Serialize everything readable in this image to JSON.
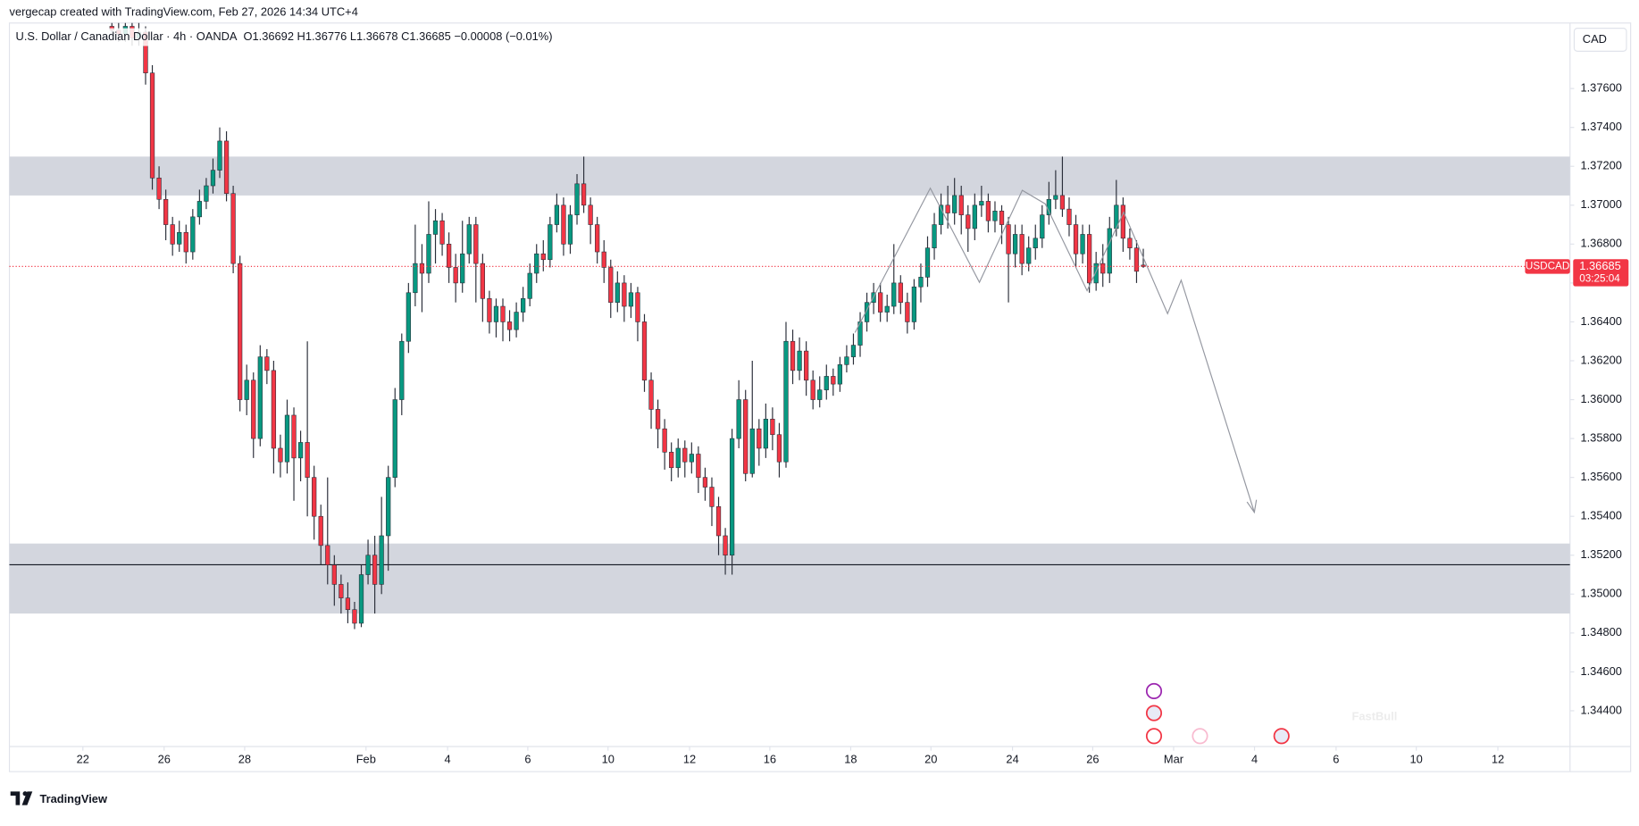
{
  "header": {
    "created_by": "vergecap created with TradingView.com, Feb 27, 2026 14:34 UTC+4",
    "logo": "TradingView"
  },
  "chart_data": {
    "type": "candlestick",
    "title": "U.S. Dollar / Canadian Dollar · 4h · OANDA",
    "subtitle": "O1.36692 H1.36776 L1.36678 C1.36685 −0.00008 (−0.01%)",
    "currency": "CAD",
    "countdown": "03:25:04",
    "watermark": "FastBull",
    "grid": false,
    "series": [
      {
        "name": "USDCAD",
        "up_color": "#089981",
        "down_color": "#f23645",
        "open": [
          1.3792,
          1.379,
          1.3788,
          1.3792,
          1.3786,
          1.3789,
          1.3768,
          1.3714,
          1.3703,
          1.369,
          1.368,
          1.3686,
          1.3676,
          1.3694,
          1.3702,
          1.371,
          1.3718,
          1.3733,
          1.3706,
          1.367,
          1.36,
          1.361,
          1.358,
          1.3622,
          1.3615,
          1.3575,
          1.3568,
          1.3592,
          1.357,
          1.3578,
          1.356,
          1.354,
          1.3525,
          1.3515,
          1.3505,
          1.3498,
          1.3492,
          1.3485,
          1.351,
          1.352,
          1.3505,
          1.353,
          1.356,
          1.36,
          1.363,
          1.3655,
          1.367,
          1.3665,
          1.3685,
          1.3692,
          1.368,
          1.3668,
          1.366,
          1.3675,
          1.369,
          1.367,
          1.3652,
          1.364,
          1.3648,
          1.364,
          1.3636,
          1.3645,
          1.3652,
          1.3665,
          1.3675,
          1.3672,
          1.369,
          1.37,
          1.368,
          1.3695,
          1.3711,
          1.37,
          1.369,
          1.3676,
          1.3668,
          1.365,
          1.366,
          1.3648,
          1.3655,
          1.364,
          1.361,
          1.3595,
          1.3585,
          1.3573,
          1.3565,
          1.3575,
          1.3568,
          1.3572,
          1.356,
          1.3555,
          1.3545,
          1.353,
          1.352,
          1.358,
          1.36,
          1.3562,
          1.3585,
          1.3575,
          1.359,
          1.3582,
          1.3568,
          1.363,
          1.3615,
          1.3625,
          1.361,
          1.36,
          1.3605,
          1.3612,
          1.3608,
          1.3618,
          1.3622,
          1.3628,
          1.364,
          1.365,
          1.3655,
          1.3645,
          1.3648,
          1.366,
          1.365,
          1.364,
          1.3658,
          1.3663,
          1.3678,
          1.369,
          1.37,
          1.3696,
          1.3705,
          1.3695,
          1.3688,
          1.37,
          1.3702,
          1.3692,
          1.3697,
          1.369,
          1.3675,
          1.3685,
          1.367,
          1.3678,
          1.3683,
          1.3695,
          1.3703,
          1.3705,
          1.3698,
          1.369,
          1.3675,
          1.3685,
          1.366,
          1.367,
          1.3665,
          1.3688,
          1.37,
          1.3683,
          1.3678,
          1.36692
        ],
        "high": [
          1.3796,
          1.3794,
          1.3797,
          1.3796,
          1.3794,
          1.3792,
          1.3772,
          1.372,
          1.3708,
          1.3694,
          1.3692,
          1.369,
          1.3698,
          1.3708,
          1.3714,
          1.3724,
          1.374,
          1.3738,
          1.371,
          1.3674,
          1.3618,
          1.3614,
          1.3628,
          1.3626,
          1.362,
          1.3582,
          1.36,
          1.3596,
          1.3584,
          1.363,
          1.3566,
          1.3546,
          1.356,
          1.352,
          1.351,
          1.3506,
          1.3496,
          1.3515,
          1.3528,
          1.353,
          1.355,
          1.3566,
          1.3606,
          1.3634,
          1.366,
          1.369,
          1.368,
          1.3702,
          1.3698,
          1.3696,
          1.3686,
          1.3675,
          1.3692,
          1.3694,
          1.3694,
          1.3675,
          1.3656,
          1.3652,
          1.3652,
          1.3646,
          1.365,
          1.3658,
          1.367,
          1.368,
          1.3682,
          1.3694,
          1.3706,
          1.3704,
          1.37,
          1.3716,
          1.3725,
          1.3704,
          1.3694,
          1.3682,
          1.3672,
          1.3666,
          1.3664,
          1.366,
          1.3658,
          1.3644,
          1.3614,
          1.36,
          1.359,
          1.3578,
          1.358,
          1.3579,
          1.3578,
          1.3576,
          1.3565,
          1.356,
          1.355,
          1.3534,
          1.3585,
          1.361,
          1.3605,
          1.362,
          1.359,
          1.3598,
          1.3596,
          1.3588,
          1.364,
          1.3636,
          1.3632,
          1.363,
          1.3615,
          1.3612,
          1.3618,
          1.3616,
          1.3622,
          1.3628,
          1.3634,
          1.3645,
          1.3655,
          1.366,
          1.366,
          1.3654,
          1.368,
          1.3664,
          1.3655,
          1.3662,
          1.367,
          1.3684,
          1.3696,
          1.3706,
          1.371,
          1.3714,
          1.371,
          1.37,
          1.3706,
          1.371,
          1.3706,
          1.3702,
          1.37,
          1.3694,
          1.369,
          1.369,
          1.3684,
          1.369,
          1.37,
          1.3712,
          1.3718,
          1.3725,
          1.3704,
          1.3695,
          1.369,
          1.369,
          1.3676,
          1.368,
          1.3694,
          1.3713,
          1.3704,
          1.3688,
          1.3682,
          1.36776
        ],
        "low": [
          1.3786,
          1.3784,
          1.3784,
          1.3782,
          1.3782,
          1.3762,
          1.3708,
          1.3698,
          1.3682,
          1.3674,
          1.3676,
          1.367,
          1.3672,
          1.369,
          1.3698,
          1.3706,
          1.3714,
          1.3702,
          1.3665,
          1.3594,
          1.3592,
          1.357,
          1.3576,
          1.3608,
          1.3562,
          1.356,
          1.3562,
          1.3548,
          1.3558,
          1.354,
          1.3528,
          1.3515,
          1.3505,
          1.3494,
          1.349,
          1.3485,
          1.3482,
          1.3483,
          1.3505,
          1.349,
          1.35,
          1.3512,
          1.3555,
          1.3592,
          1.3624,
          1.3648,
          1.3645,
          1.366,
          1.367,
          1.3674,
          1.366,
          1.365,
          1.3655,
          1.367,
          1.365,
          1.364,
          1.3634,
          1.3632,
          1.363,
          1.363,
          1.3632,
          1.364,
          1.3648,
          1.366,
          1.3666,
          1.3668,
          1.3686,
          1.3674,
          1.3675,
          1.369,
          1.3696,
          1.368,
          1.367,
          1.366,
          1.3642,
          1.3645,
          1.364,
          1.3642,
          1.363,
          1.3604,
          1.3585,
          1.3575,
          1.3564,
          1.3558,
          1.356,
          1.356,
          1.3562,
          1.3552,
          1.3548,
          1.3535,
          1.352,
          1.351,
          1.351,
          1.3575,
          1.3558,
          1.356,
          1.3566,
          1.357,
          1.3574,
          1.356,
          1.3565,
          1.3608,
          1.361,
          1.3602,
          1.3595,
          1.3596,
          1.36,
          1.3602,
          1.3604,
          1.3614,
          1.3618,
          1.3622,
          1.3635,
          1.3644,
          1.364,
          1.364,
          1.3644,
          1.3644,
          1.3634,
          1.3636,
          1.365,
          1.3658,
          1.3672,
          1.3685,
          1.3688,
          1.369,
          1.3685,
          1.3676,
          1.3682,
          1.3694,
          1.3686,
          1.3686,
          1.368,
          1.365,
          1.3668,
          1.3664,
          1.3666,
          1.3672,
          1.3678,
          1.369,
          1.3698,
          1.3694,
          1.3684,
          1.3668,
          1.367,
          1.3655,
          1.3656,
          1.3658,
          1.366,
          1.3684,
          1.3676,
          1.3672,
          1.366,
          1.36678
        ],
        "close": [
          1.379,
          1.3788,
          1.3792,
          1.3786,
          1.3789,
          1.3768,
          1.3714,
          1.3703,
          1.369,
          1.368,
          1.3686,
          1.3676,
          1.3694,
          1.3702,
          1.371,
          1.3718,
          1.3733,
          1.3706,
          1.367,
          1.36,
          1.361,
          1.358,
          1.3622,
          1.3615,
          1.3575,
          1.3568,
          1.3592,
          1.357,
          1.3578,
          1.356,
          1.354,
          1.3525,
          1.3515,
          1.3505,
          1.3498,
          1.3492,
          1.3485,
          1.351,
          1.352,
          1.3505,
          1.353,
          1.356,
          1.36,
          1.363,
          1.3655,
          1.367,
          1.3665,
          1.3685,
          1.3692,
          1.368,
          1.3668,
          1.366,
          1.3675,
          1.369,
          1.367,
          1.3652,
          1.364,
          1.3648,
          1.364,
          1.3636,
          1.3645,
          1.3652,
          1.3665,
          1.3675,
          1.3672,
          1.369,
          1.37,
          1.368,
          1.3695,
          1.3711,
          1.37,
          1.369,
          1.3676,
          1.3668,
          1.365,
          1.366,
          1.3648,
          1.3655,
          1.364,
          1.361,
          1.3595,
          1.3585,
          1.3573,
          1.3565,
          1.3575,
          1.3568,
          1.3572,
          1.356,
          1.3555,
          1.3545,
          1.353,
          1.352,
          1.358,
          1.36,
          1.3562,
          1.3585,
          1.3575,
          1.359,
          1.3582,
          1.3568,
          1.363,
          1.3615,
          1.3625,
          1.361,
          1.36,
          1.3605,
          1.3612,
          1.3608,
          1.3618,
          1.3622,
          1.3628,
          1.364,
          1.365,
          1.3655,
          1.3645,
          1.3648,
          1.366,
          1.365,
          1.364,
          1.3658,
          1.3663,
          1.3678,
          1.369,
          1.37,
          1.3696,
          1.3705,
          1.3695,
          1.3688,
          1.37,
          1.3702,
          1.3692,
          1.3697,
          1.369,
          1.3675,
          1.3685,
          1.367,
          1.3678,
          1.3683,
          1.3695,
          1.3703,
          1.3705,
          1.3698,
          1.369,
          1.3675,
          1.3685,
          1.366,
          1.367,
          1.3665,
          1.3688,
          1.37,
          1.3683,
          1.3678,
          1.3666,
          1.36685
        ]
      }
    ],
    "xlim": [
      -15.2,
      216.3
    ],
    "xticks": [
      {
        "value": -4.3,
        "label": "22"
      },
      {
        "value": 7.75,
        "label": "26"
      },
      {
        "value": 19.7,
        "label": "28"
      },
      {
        "value": 37.7,
        "label": "Feb"
      },
      {
        "value": 49.8,
        "label": "4"
      },
      {
        "value": 61.7,
        "label": "6"
      },
      {
        "value": 73.6,
        "label": "10"
      },
      {
        "value": 85.7,
        "label": "12"
      },
      {
        "value": 97.6,
        "label": "16"
      },
      {
        "value": 109.6,
        "label": "18"
      },
      {
        "value": 121.5,
        "label": "20"
      },
      {
        "value": 133.6,
        "label": "24"
      },
      {
        "value": 145.5,
        "label": "26"
      },
      {
        "value": 157.5,
        "label": "Mar"
      },
      {
        "value": 169.5,
        "label": "4"
      },
      {
        "value": 181.6,
        "label": "6"
      },
      {
        "value": 193.5,
        "label": "10"
      },
      {
        "value": 205.6,
        "label": "12"
      }
    ],
    "ylim": [
      1.34216,
      1.37937
    ],
    "yticks": [
      {
        "value": 1.344,
        "label": "1.34400"
      },
      {
        "value": 1.346,
        "label": "1.34600"
      },
      {
        "value": 1.348,
        "label": "1.34800"
      },
      {
        "value": 1.35,
        "label": "1.35000"
      },
      {
        "value": 1.352,
        "label": "1.35200"
      },
      {
        "value": 1.354,
        "label": "1.35400"
      },
      {
        "value": 1.356,
        "label": "1.35600"
      },
      {
        "value": 1.358,
        "label": "1.35800"
      },
      {
        "value": 1.36,
        "label": "1.36000"
      },
      {
        "value": 1.362,
        "label": "1.36200"
      },
      {
        "value": 1.364,
        "label": "1.36400"
      },
      {
        "value": 1.366,
        "label": "1.36600"
      },
      {
        "value": 1.368,
        "label": "1.36800"
      },
      {
        "value": 1.37,
        "label": "1.37000"
      },
      {
        "value": 1.372,
        "label": "1.37200"
      },
      {
        "value": 1.374,
        "label": "1.37400"
      },
      {
        "value": 1.376,
        "label": "1.37600"
      }
    ],
    "zones": [
      {
        "from": 1.3705,
        "to": 1.3725
      },
      {
        "from": 1.349,
        "to": 1.3526
      }
    ],
    "support_line": 1.35151
  }
}
